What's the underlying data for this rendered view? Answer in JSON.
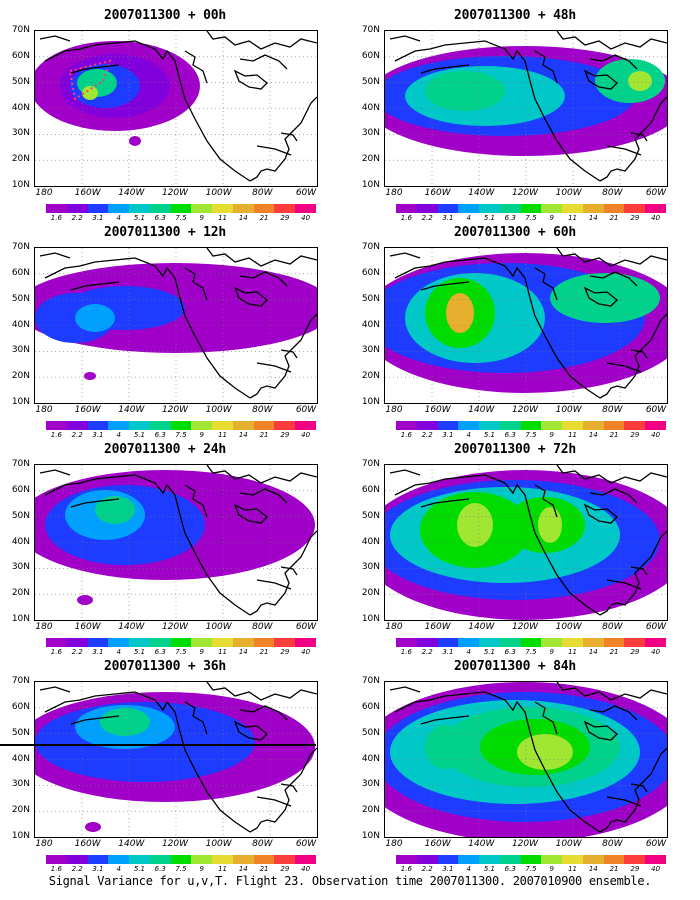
{
  "caption": "Signal Variance for u,v,T. Flight 23. Observation time 2007011300. 2007010900 ensemble.",
  "x_ticks": [
    "180",
    "160W",
    "140W",
    "120W",
    "100W",
    "80W",
    "60W"
  ],
  "y_ticks": [
    "70N",
    "60N",
    "50N",
    "40N",
    "30N",
    "20N",
    "10N"
  ],
  "colorbar": {
    "labels": [
      "1.6",
      "2.2",
      "3.1",
      "4",
      "5.1",
      "6.3",
      "7.5",
      "9",
      "11",
      "14",
      "21",
      "29",
      "40"
    ],
    "colors": [
      "#a000c8",
      "#8200dc",
      "#1e3cff",
      "#00a0ff",
      "#00c8c8",
      "#00d28c",
      "#00dc00",
      "#a0e632",
      "#e6dc32",
      "#e6af2d",
      "#f08228",
      "#fa3c3c",
      "#f00082"
    ]
  },
  "panels": [
    {
      "title": "2007011300 + 00h",
      "lead": "00h"
    },
    {
      "title": "2007011300 + 48h",
      "lead": "48h"
    },
    {
      "title": "2007011300 + 12h",
      "lead": "12h"
    },
    {
      "title": "2007011300 + 60h",
      "lead": "60h"
    },
    {
      "title": "2007011300 + 24h",
      "lead": "24h"
    },
    {
      "title": "2007011300 + 72h",
      "lead": "72h"
    },
    {
      "title": "2007011300 + 36h",
      "lead": "36h"
    },
    {
      "title": "2007011300 + 84h",
      "lead": "84h"
    }
  ],
  "chart_data": {
    "type": "heatmap",
    "variable": "Signal Variance for u,v,T",
    "x_axis": {
      "range": [
        "180",
        "60W"
      ],
      "ticks": [
        "180",
        "160W",
        "140W",
        "120W",
        "100W",
        "80W",
        "60W"
      ]
    },
    "y_axis": {
      "range": [
        "10N",
        "70N"
      ],
      "ticks": [
        "10N",
        "20N",
        "30N",
        "40N",
        "50N",
        "60N",
        "70N"
      ]
    },
    "grid": true,
    "legend": "colorbar below each panel",
    "levels": [
      1.6,
      2.2,
      3.1,
      4,
      5.1,
      6.3,
      7.5,
      9,
      11,
      14,
      21,
      29,
      40
    ],
    "panels": [
      "00h",
      "48h",
      "12h",
      "60h",
      "24h",
      "72h",
      "36h",
      "84h"
    ]
  }
}
